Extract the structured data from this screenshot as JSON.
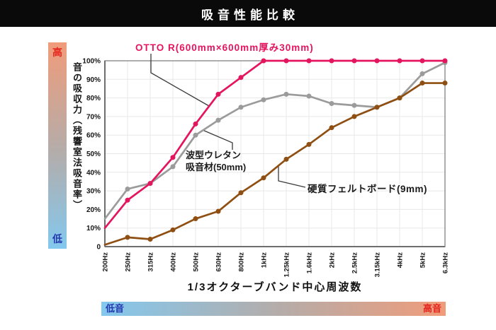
{
  "header": {
    "title": "吸音性能比較"
  },
  "colors": {
    "warm": "#f09c7a",
    "neutral": "#b5aca9",
    "cool": "#83c8ee",
    "high_text": "#e5231b",
    "low_text": "#2438b0",
    "annotation_line": "#3a3a3a",
    "grid": "#e8e8e8",
    "border": "#8a8a8a",
    "axis": "#6e6e6e"
  },
  "vertical_scale": {
    "high": "高",
    "low": "低"
  },
  "horizontal_scale": {
    "low": "低音",
    "high": "高音"
  },
  "chart_data": {
    "type": "line",
    "title": "吸音性能比較",
    "xlabel": "1/3オクターブバンド中心周波数",
    "ylabel": "音の吸収力（残響室法吸音率）",
    "categories": [
      "200Hz",
      "250Hz",
      "315Hz",
      "400Hz",
      "500Hz",
      "630Hz",
      "800Hz",
      "1kHz",
      "1.25kHz",
      "1.6kHz",
      "2kHz",
      "2.5kHz",
      "3.15kHz",
      "4kHz",
      "5kHz",
      "6.3kHz"
    ],
    "y_ticks": [
      "100%",
      "90%",
      "80%",
      "70%",
      "60%",
      "50%",
      "40%",
      "30%",
      "20%",
      "10%",
      "0"
    ],
    "ylim": [
      0,
      100
    ],
    "grid": true,
    "series": [
      {
        "name": "OTTO R(600mm×600mm厚み30mm)",
        "color": "#e4145f",
        "values": [
          10,
          25,
          34,
          48,
          66,
          82,
          91,
          100,
          100,
          100,
          100,
          100,
          100,
          100,
          100,
          100
        ]
      },
      {
        "name": "波型ウレタン吸音材(50mm)",
        "label_line1": "波型ウレタン",
        "label_line2": "吸音材(50mm)",
        "color": "#9b9b9b",
        "values": [
          15,
          31,
          34,
          43,
          60,
          68,
          75,
          79,
          82,
          81,
          77,
          76,
          75,
          80,
          93,
          99
        ]
      },
      {
        "name": "硬質フェルトボード(9mm)",
        "color": "#8f4f12",
        "values": [
          1,
          5,
          4,
          9,
          15,
          19,
          29,
          37,
          47,
          55,
          64,
          70,
          75,
          80,
          88,
          88
        ]
      }
    ]
  }
}
